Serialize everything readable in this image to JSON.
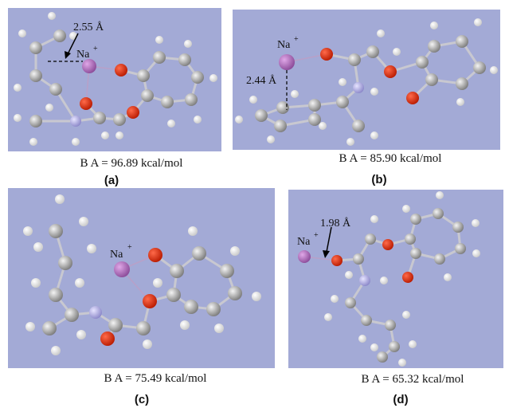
{
  "panels": [
    {
      "label": "(a)",
      "caption": "B A = 96.89 kcal/mol",
      "ion": "Na",
      "charge": "+",
      "distance": "2.55 Å"
    },
    {
      "label": "(b)",
      "caption": "B A = 85.90 kcal/mol",
      "ion": "Na",
      "charge": "+",
      "distance": "2.44 Å"
    },
    {
      "label": "(c)",
      "caption": "B A = 75.49 kcal/mol",
      "ion": "Na",
      "charge": "+"
    },
    {
      "label": "(d)",
      "caption": "B A = 65.32 kcal/mol",
      "ion": "Na",
      "charge": "+",
      "distance": "1.98 Å"
    }
  ]
}
